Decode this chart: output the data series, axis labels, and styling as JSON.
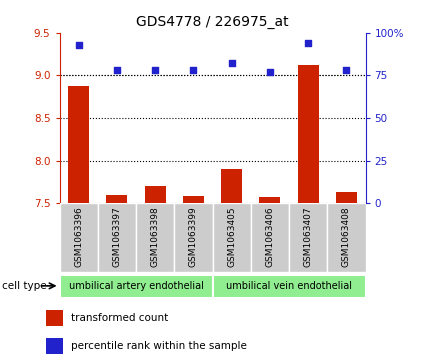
{
  "title": "GDS4778 / 226975_at",
  "samples": [
    "GSM1063396",
    "GSM1063397",
    "GSM1063398",
    "GSM1063399",
    "GSM1063405",
    "GSM1063406",
    "GSM1063407",
    "GSM1063408"
  ],
  "transformed_count": [
    8.87,
    7.6,
    7.7,
    7.58,
    7.9,
    7.57,
    9.12,
    7.63
  ],
  "percentile_rank": [
    93,
    78,
    78,
    78,
    82,
    77,
    94,
    78
  ],
  "ylim_left": [
    7.5,
    9.5
  ],
  "ylim_right": [
    0,
    100
  ],
  "yticks_left": [
    7.5,
    8.0,
    8.5,
    9.0,
    9.5
  ],
  "yticks_right": [
    0,
    25,
    50,
    75,
    100
  ],
  "bar_color": "#cc2200",
  "dot_color": "#2222cc",
  "cell_type_groups": [
    {
      "label": "umbilical artery endothelial",
      "start": 0,
      "end": 4
    },
    {
      "label": "umbilical vein endothelial",
      "start": 4,
      "end": 8
    }
  ],
  "cell_type_label": "cell type",
  "legend_items": [
    {
      "label": "transformed count",
      "color": "#cc2200"
    },
    {
      "label": "percentile rank within the sample",
      "color": "#2222cc"
    }
  ],
  "bg_color": "#ffffff",
  "bar_width": 0.55,
  "tick_label_color_left": "#cc2200",
  "tick_label_color_right": "#2222cc",
  "sample_box_color": "#cccccc",
  "group_fill_color": "#90ee90"
}
